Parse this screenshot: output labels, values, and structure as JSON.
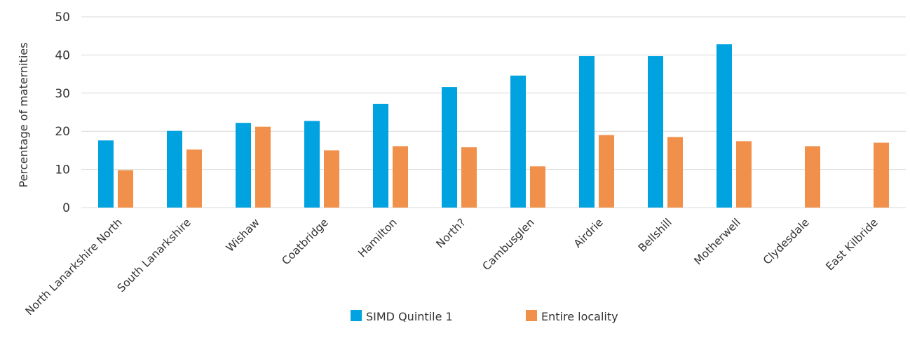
{
  "chart_data": {
    "type": "bar",
    "title": "",
    "xlabel": "",
    "ylabel": "Percentage of maternities",
    "ylim": [
      0,
      50
    ],
    "yticks": [
      0,
      10,
      20,
      30,
      40,
      50
    ],
    "grid": true,
    "legend_position": "bottom",
    "categories": [
      "North Lanarkshire North",
      "South Lanarkshire",
      "Wishaw",
      "Coatbridge",
      "Hamilton",
      "North?",
      "Cambusglen",
      "Airdrie",
      "Bellshill",
      "Motherwell",
      "Clydesdale",
      "East Kilbride"
    ],
    "series": [
      {
        "name": "SIMD Quintile 1",
        "color": "#00a3e0",
        "values": [
          17.6,
          20.1,
          22.2,
          22.7,
          27.2,
          31.6,
          34.6,
          39.7,
          39.7,
          42.8,
          null,
          null
        ]
      },
      {
        "name": "Entire locality",
        "color": "#f0904a",
        "values": [
          9.8,
          15.2,
          21.2,
          15.0,
          16.1,
          15.8,
          10.8,
          19.0,
          18.5,
          17.4,
          16.1,
          17.0
        ]
      }
    ]
  }
}
